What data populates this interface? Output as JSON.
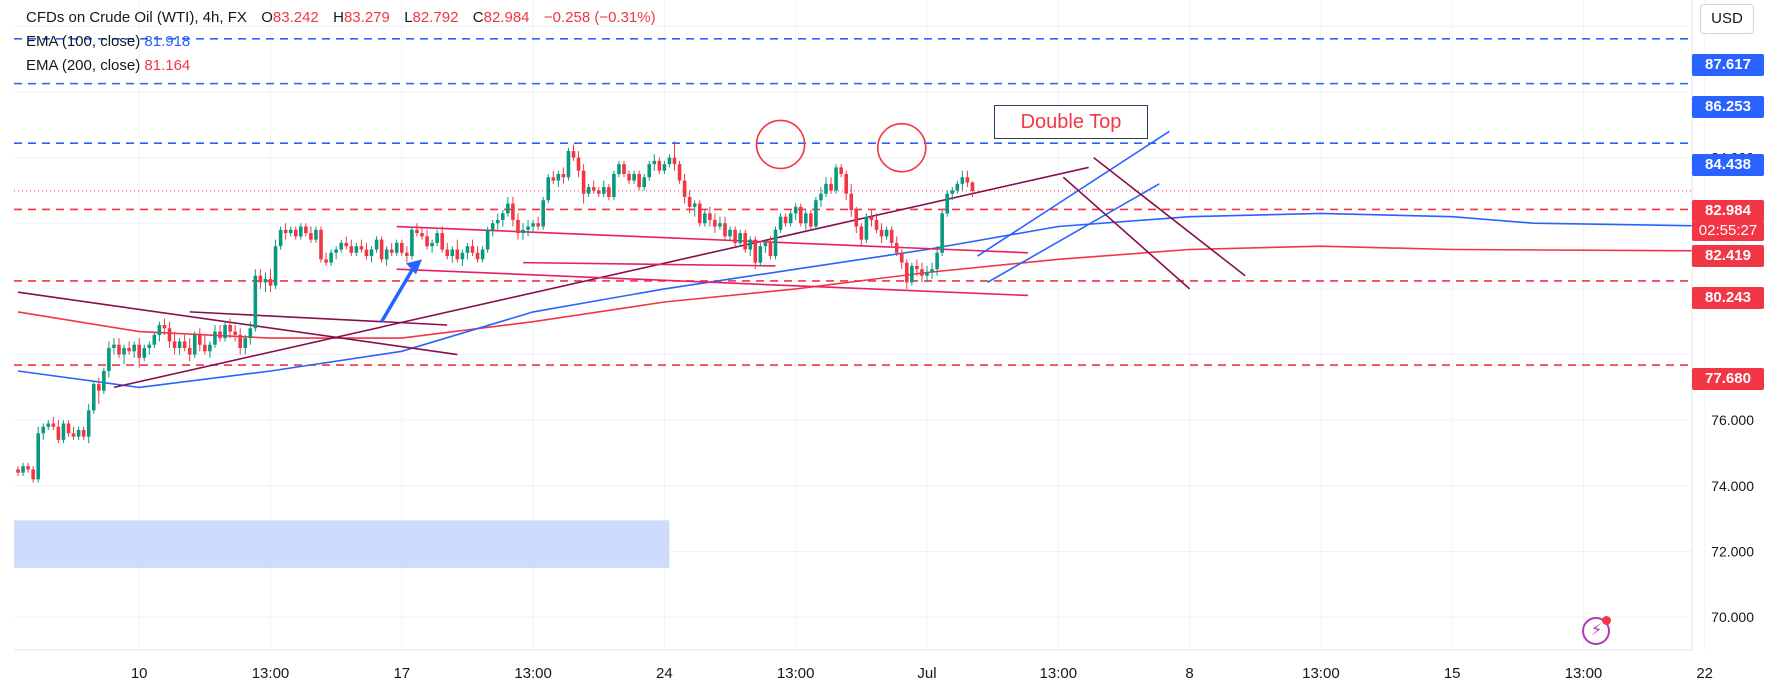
{
  "legend": {
    "symbol": "CFDs on Crude Oil (WTI), 4h, FX",
    "ohlc": {
      "o_label": "O",
      "o": "83.242",
      "h_label": "H",
      "h": "83.279",
      "l_label": "L",
      "l": "82.792",
      "c_label": "C",
      "c": "82.984",
      "change": "−0.258 (−0.31%)"
    },
    "ema100_label": "EMA (100, close)",
    "ema100_value": "81.918",
    "ema200_label": "EMA (200, close)",
    "ema200_value": "81.164"
  },
  "currency_button": "USD",
  "annotation": "Double Top",
  "price_tags": {
    "t1": "87.617",
    "t2": "86.253",
    "t3": "84.438",
    "t4": "82.984",
    "countdown": "02:55:27",
    "t5": "82.419",
    "t6": "80.243",
    "t7": "77.680"
  },
  "colors": {
    "up": "#089981",
    "down": "#f23645",
    "ema100": "#2962ff",
    "ema200": "#f23645",
    "level_line": "#2962ff",
    "support_line": "#f23645",
    "trendline": "#880e4f",
    "channel": "#e91e63",
    "zone": "#c5d5fb",
    "last_price_tag": "#f23645",
    "level_tag": "#2962ff"
  },
  "chart_data": {
    "type": "candlestick",
    "timeframe": "4h",
    "ylim": [
      69,
      88.8
    ],
    "y_ticks": [
      88.0,
      84.0,
      76.0,
      74.0,
      72.0,
      70.0
    ],
    "x_tick_labels": [
      "10",
      "13:00",
      "17",
      "13:00",
      "24",
      "13:00",
      "Jul",
      "13:00",
      "8",
      "13:00",
      "15",
      "13:00",
      "22"
    ],
    "x_tick_index": [
      24,
      50,
      76,
      102,
      128,
      154,
      180,
      206,
      232,
      258,
      284,
      310,
      334
    ],
    "candles": [
      [
        74.5,
        74.6,
        74.3,
        74.4
      ],
      [
        74.4,
        74.7,
        74.3,
        74.6
      ],
      [
        74.6,
        74.7,
        74.4,
        74.5
      ],
      [
        74.5,
        74.6,
        74.1,
        74.2
      ],
      [
        74.2,
        75.8,
        74.1,
        75.6
      ],
      [
        75.6,
        75.9,
        75.4,
        75.8
      ],
      [
        75.8,
        76.0,
        75.7,
        75.9
      ],
      [
        75.9,
        76.1,
        75.7,
        75.8
      ],
      [
        75.8,
        76.0,
        75.3,
        75.4
      ],
      [
        75.4,
        76.0,
        75.3,
        75.9
      ],
      [
        75.9,
        76.0,
        75.5,
        75.6
      ],
      [
        75.6,
        75.8,
        75.4,
        75.5
      ],
      [
        75.5,
        75.8,
        75.4,
        75.7
      ],
      [
        75.7,
        75.8,
        75.4,
        75.5
      ],
      [
        75.5,
        76.5,
        75.3,
        76.3
      ],
      [
        76.3,
        77.2,
        76.2,
        77.1
      ],
      [
        77.1,
        77.3,
        76.5,
        76.9
      ],
      [
        76.9,
        77.6,
        76.8,
        77.5
      ],
      [
        77.5,
        78.4,
        77.3,
        78.2
      ],
      [
        78.2,
        78.5,
        78.0,
        78.3
      ],
      [
        78.3,
        78.5,
        77.9,
        78.0
      ],
      [
        78.0,
        78.3,
        77.7,
        78.2
      ],
      [
        78.2,
        78.4,
        78.0,
        78.1
      ],
      [
        78.1,
        78.4,
        77.9,
        78.3
      ],
      [
        78.3,
        78.5,
        77.6,
        77.9
      ],
      [
        77.9,
        78.3,
        77.8,
        78.2
      ],
      [
        78.2,
        78.4,
        78.0,
        78.3
      ],
      [
        78.3,
        78.7,
        78.2,
        78.6
      ],
      [
        78.6,
        79.0,
        78.4,
        78.9
      ],
      [
        78.9,
        79.1,
        78.6,
        78.8
      ],
      [
        78.8,
        79.0,
        78.2,
        78.4
      ],
      [
        78.4,
        78.7,
        78.0,
        78.2
      ],
      [
        78.2,
        78.5,
        78.0,
        78.4
      ],
      [
        78.4,
        78.6,
        78.1,
        78.2
      ],
      [
        78.2,
        78.5,
        77.8,
        78.0
      ],
      [
        78.0,
        78.7,
        77.9,
        78.6
      ],
      [
        78.6,
        78.8,
        78.1,
        78.3
      ],
      [
        78.3,
        78.6,
        78.0,
        78.1
      ],
      [
        78.1,
        78.4,
        77.9,
        78.3
      ],
      [
        78.3,
        78.9,
        78.2,
        78.7
      ],
      [
        78.7,
        78.9,
        78.4,
        78.5
      ],
      [
        78.5,
        79.0,
        78.4,
        78.9
      ],
      [
        78.9,
        79.1,
        78.5,
        78.7
      ],
      [
        78.7,
        78.9,
        78.4,
        78.6
      ],
      [
        78.6,
        78.8,
        78.0,
        78.2
      ],
      [
        78.2,
        78.6,
        78.0,
        78.5
      ],
      [
        78.5,
        79.0,
        78.3,
        78.8
      ],
      [
        78.8,
        80.6,
        78.7,
        80.4
      ],
      [
        80.4,
        80.6,
        80.0,
        80.2
      ],
      [
        80.2,
        80.5,
        79.9,
        80.3
      ],
      [
        80.3,
        80.6,
        79.9,
        80.1
      ],
      [
        80.1,
        81.5,
        80.0,
        81.3
      ],
      [
        81.3,
        81.9,
        81.2,
        81.8
      ],
      [
        81.8,
        82.0,
        81.5,
        81.7
      ],
      [
        81.7,
        81.9,
        81.6,
        81.8
      ],
      [
        81.8,
        81.9,
        81.5,
        81.6
      ],
      [
        81.6,
        82.0,
        81.5,
        81.9
      ],
      [
        81.9,
        82.0,
        81.6,
        81.7
      ],
      [
        81.7,
        81.9,
        81.4,
        81.5
      ],
      [
        81.5,
        81.9,
        81.4,
        81.8
      ],
      [
        81.8,
        81.9,
        80.8,
        80.9
      ],
      [
        80.9,
        81.1,
        80.7,
        80.8
      ],
      [
        80.8,
        81.2,
        80.7,
        81.1
      ],
      [
        81.1,
        81.3,
        80.9,
        81.2
      ],
      [
        81.2,
        81.5,
        81.1,
        81.4
      ],
      [
        81.4,
        81.6,
        81.2,
        81.3
      ],
      [
        81.3,
        81.5,
        81.0,
        81.1
      ],
      [
        81.1,
        81.4,
        81.0,
        81.3
      ],
      [
        81.3,
        81.5,
        81.1,
        81.2
      ],
      [
        81.2,
        81.4,
        80.9,
        81.0
      ],
      [
        81.0,
        81.3,
        80.8,
        81.2
      ],
      [
        81.2,
        81.6,
        81.1,
        81.5
      ],
      [
        81.5,
        81.6,
        80.8,
        80.9
      ],
      [
        80.9,
        81.3,
        80.7,
        81.2
      ],
      [
        81.2,
        81.4,
        81.0,
        81.1
      ],
      [
        81.1,
        81.5,
        81.0,
        81.4
      ],
      [
        81.4,
        81.5,
        81.0,
        81.1
      ],
      [
        81.1,
        81.3,
        80.8,
        81.0
      ],
      [
        81.0,
        81.9,
        80.9,
        81.8
      ],
      [
        81.8,
        82.0,
        81.6,
        81.7
      ],
      [
        81.7,
        81.9,
        81.5,
        81.6
      ],
      [
        81.6,
        81.8,
        81.2,
        81.3
      ],
      [
        81.3,
        81.5,
        81.1,
        81.4
      ],
      [
        81.4,
        81.8,
        81.3,
        81.7
      ],
      [
        81.7,
        81.9,
        81.1,
        81.2
      ],
      [
        81.2,
        81.4,
        80.9,
        81.0
      ],
      [
        81.0,
        81.3,
        80.8,
        81.2
      ],
      [
        81.2,
        81.5,
        80.8,
        80.9
      ],
      [
        80.9,
        81.2,
        80.7,
        81.1
      ],
      [
        81.1,
        81.4,
        80.9,
        81.3
      ],
      [
        81.3,
        81.5,
        81.0,
        81.1
      ],
      [
        81.1,
        81.3,
        80.8,
        80.9
      ],
      [
        80.9,
        81.3,
        80.8,
        81.2
      ],
      [
        81.2,
        81.9,
        81.1,
        81.8
      ],
      [
        81.8,
        82.1,
        81.6,
        82.0
      ],
      [
        82.0,
        82.3,
        81.8,
        82.1
      ],
      [
        82.1,
        82.4,
        81.9,
        82.3
      ],
      [
        82.3,
        82.8,
        82.2,
        82.6
      ],
      [
        82.6,
        82.8,
        81.9,
        82.1
      ],
      [
        82.1,
        82.3,
        81.5,
        81.7
      ],
      [
        81.7,
        82.0,
        81.5,
        81.8
      ],
      [
        81.8,
        82.1,
        81.6,
        81.9
      ],
      [
        81.9,
        82.1,
        81.7,
        82.0
      ],
      [
        82.0,
        82.2,
        81.8,
        81.9
      ],
      [
        81.9,
        82.8,
        81.8,
        82.7
      ],
      [
        82.7,
        83.5,
        82.6,
        83.4
      ],
      [
        83.4,
        83.6,
        83.2,
        83.3
      ],
      [
        83.3,
        83.6,
        83.1,
        83.5
      ],
      [
        83.5,
        83.7,
        83.2,
        83.4
      ],
      [
        83.4,
        84.3,
        83.3,
        84.2
      ],
      [
        84.2,
        84.4,
        83.9,
        84.0
      ],
      [
        84.0,
        84.2,
        83.4,
        83.6
      ],
      [
        83.6,
        83.8,
        82.6,
        82.9
      ],
      [
        82.9,
        83.2,
        82.8,
        83.1
      ],
      [
        83.1,
        83.3,
        82.9,
        83.0
      ],
      [
        83.0,
        83.1,
        82.8,
        82.9
      ],
      [
        82.9,
        83.3,
        82.8,
        83.1
      ],
      [
        83.1,
        83.2,
        82.7,
        82.8
      ],
      [
        82.8,
        83.6,
        82.7,
        83.5
      ],
      [
        83.5,
        83.9,
        83.4,
        83.8
      ],
      [
        83.8,
        83.9,
        83.4,
        83.5
      ],
      [
        83.5,
        83.6,
        83.2,
        83.3
      ],
      [
        83.3,
        83.6,
        83.2,
        83.5
      ],
      [
        83.5,
        83.6,
        83.0,
        83.1
      ],
      [
        83.1,
        83.5,
        83.0,
        83.4
      ],
      [
        83.4,
        83.9,
        83.3,
        83.8
      ],
      [
        83.8,
        84.1,
        83.6,
        83.9
      ],
      [
        83.9,
        84.0,
        83.5,
        83.6
      ],
      [
        83.6,
        83.9,
        83.5,
        83.8
      ],
      [
        83.8,
        84.1,
        83.7,
        84.0
      ],
      [
        84.0,
        84.5,
        83.6,
        83.8
      ],
      [
        83.8,
        83.9,
        83.2,
        83.3
      ],
      [
        83.3,
        83.5,
        82.6,
        82.8
      ],
      [
        82.8,
        83.0,
        82.3,
        82.5
      ],
      [
        82.5,
        82.7,
        82.2,
        82.6
      ],
      [
        82.6,
        82.7,
        81.9,
        82.0
      ],
      [
        82.0,
        82.4,
        81.9,
        82.3
      ],
      [
        82.3,
        82.5,
        81.9,
        82.1
      ],
      [
        82.1,
        82.3,
        81.7,
        81.9
      ],
      [
        81.9,
        82.2,
        81.8,
        82.0
      ],
      [
        82.0,
        82.2,
        81.5,
        81.6
      ],
      [
        81.6,
        81.9,
        81.5,
        81.8
      ],
      [
        81.8,
        81.9,
        81.3,
        81.4
      ],
      [
        81.4,
        81.8,
        81.3,
        81.7
      ],
      [
        81.7,
        81.8,
        81.1,
        81.2
      ],
      [
        81.2,
        81.6,
        81.0,
        81.5
      ],
      [
        81.5,
        81.6,
        80.6,
        80.8
      ],
      [
        80.8,
        81.4,
        80.7,
        81.3
      ],
      [
        81.3,
        81.5,
        81.1,
        81.4
      ],
      [
        81.4,
        81.6,
        80.9,
        81.0
      ],
      [
        81.0,
        81.9,
        80.9,
        81.8
      ],
      [
        81.8,
        82.3,
        81.7,
        82.2
      ],
      [
        82.2,
        82.3,
        81.9,
        82.0
      ],
      [
        82.0,
        82.4,
        81.9,
        82.3
      ],
      [
        82.3,
        82.6,
        82.1,
        82.5
      ],
      [
        82.5,
        82.6,
        81.9,
        82.0
      ],
      [
        82.0,
        82.4,
        81.8,
        82.3
      ],
      [
        82.3,
        82.4,
        81.8,
        81.9
      ],
      [
        81.9,
        82.8,
        81.8,
        82.7
      ],
      [
        82.7,
        83.1,
        82.5,
        82.9
      ],
      [
        82.9,
        83.4,
        82.8,
        83.2
      ],
      [
        83.2,
        83.4,
        82.9,
        83.0
      ],
      [
        83.0,
        83.8,
        82.9,
        83.7
      ],
      [
        83.7,
        83.8,
        83.4,
        83.5
      ],
      [
        83.5,
        83.6,
        82.7,
        82.9
      ],
      [
        82.9,
        83.2,
        82.2,
        82.4
      ],
      [
        82.4,
        82.5,
        81.7,
        81.9
      ],
      [
        81.9,
        82.0,
        81.3,
        81.5
      ],
      [
        81.5,
        82.3,
        81.4,
        82.2
      ],
      [
        82.2,
        82.4,
        81.9,
        82.1
      ],
      [
        82.1,
        82.3,
        81.7,
        81.8
      ],
      [
        81.8,
        82.0,
        81.4,
        81.6
      ],
      [
        81.6,
        81.9,
        81.5,
        81.8
      ],
      [
        81.8,
        81.9,
        81.3,
        81.4
      ],
      [
        81.4,
        81.6,
        81.0,
        81.1
      ],
      [
        81.1,
        81.2,
        80.6,
        80.8
      ],
      [
        80.8,
        80.9,
        80.0,
        80.2
      ],
      [
        80.2,
        80.8,
        80.1,
        80.7
      ],
      [
        80.7,
        80.9,
        80.4,
        80.6
      ],
      [
        80.6,
        80.8,
        80.2,
        80.4
      ],
      [
        80.4,
        80.7,
        80.2,
        80.5
      ],
      [
        80.5,
        80.8,
        80.3,
        80.6
      ],
      [
        80.6,
        81.3,
        80.4,
        81.1
      ],
      [
        81.1,
        82.4,
        81.0,
        82.3
      ],
      [
        82.3,
        83.0,
        82.2,
        82.9
      ],
      [
        82.9,
        83.1,
        82.7,
        83.0
      ],
      [
        83.0,
        83.3,
        82.9,
        83.2
      ],
      [
        83.2,
        83.6,
        83.0,
        83.4
      ],
      [
        83.4,
        83.6,
        83.1,
        83.24
      ],
      [
        83.242,
        83.279,
        82.792,
        82.984
      ]
    ],
    "ema100": [
      [
        0,
        77.5
      ],
      [
        24,
        77.0
      ],
      [
        50,
        77.5
      ],
      [
        76,
        78.1
      ],
      [
        102,
        79.3
      ],
      [
        128,
        80.0
      ],
      [
        154,
        80.6
      ],
      [
        180,
        81.2
      ],
      [
        206,
        81.9
      ],
      [
        232,
        82.2
      ],
      [
        258,
        82.3
      ],
      [
        284,
        82.2
      ],
      [
        300,
        82.0
      ],
      [
        334,
        81.92
      ]
    ],
    "ema200": [
      [
        0,
        79.3
      ],
      [
        24,
        78.7
      ],
      [
        50,
        78.5
      ],
      [
        76,
        78.5
      ],
      [
        102,
        79.0
      ],
      [
        128,
        79.6
      ],
      [
        154,
        80.0
      ],
      [
        180,
        80.5
      ],
      [
        206,
        80.9
      ],
      [
        232,
        81.2
      ],
      [
        258,
        81.3
      ],
      [
        284,
        81.2
      ],
      [
        334,
        81.16
      ]
    ],
    "horizontal_levels": [
      {
        "value": 87.617,
        "style": "dashed",
        "color": "blue"
      },
      {
        "value": 86.253,
        "style": "dashed",
        "color": "blue"
      },
      {
        "value": 84.438,
        "style": "dashed",
        "color": "blue"
      },
      {
        "value": 82.419,
        "style": "dashed",
        "color": "red"
      },
      {
        "value": 80.243,
        "style": "dashed",
        "color": "red"
      },
      {
        "value": 77.68,
        "style": "dashed",
        "color": "red"
      }
    ],
    "last_price": 82.984,
    "zone": {
      "x_start": 0,
      "x_end": 129,
      "y_low": 71.5,
      "y_high": 72.95
    },
    "trendlines": [
      {
        "from": [
          0,
          79.9
        ],
        "to": [
          87,
          78.0
        ],
        "color": "trendline"
      },
      {
        "from": [
          34,
          79.3
        ],
        "to": [
          85,
          78.9
        ],
        "color": "trendline"
      },
      {
        "from": [
          19,
          77.0
        ],
        "to": [
          212,
          83.7
        ],
        "color": "trendline"
      },
      {
        "from": [
          75,
          81.9
        ],
        "to": [
          200,
          81.1
        ],
        "color": "channel"
      },
      {
        "from": [
          75,
          80.6
        ],
        "to": [
          200,
          79.8
        ],
        "color": "channel"
      },
      {
        "from": [
          100,
          80.8
        ],
        "to": [
          150,
          80.7
        ],
        "color": "channel"
      },
      {
        "from": [
          190,
          81.0
        ],
        "to": [
          228,
          84.8
        ],
        "color": "ema100"
      },
      {
        "from": [
          192,
          80.2
        ],
        "to": [
          226,
          83.2
        ],
        "color": "ema100"
      },
      {
        "from": [
          207,
          83.4
        ],
        "to": [
          232,
          80.0
        ],
        "color": "trendline"
      },
      {
        "from": [
          213,
          84.0
        ],
        "to": [
          243,
          80.4
        ],
        "color": "trendline"
      }
    ],
    "circles": [
      {
        "index": 151,
        "value": 84.4
      },
      {
        "index": 175,
        "value": 84.3
      }
    ]
  }
}
